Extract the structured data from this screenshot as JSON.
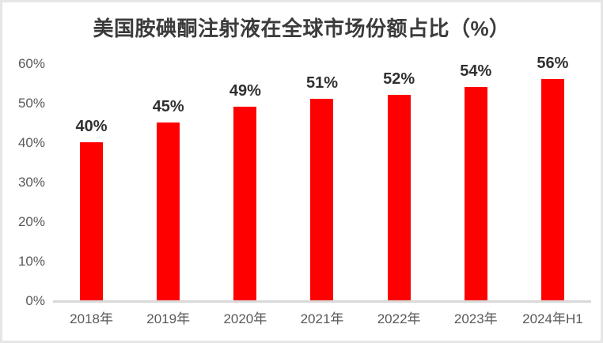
{
  "window": {
    "background_color": "#ffffff",
    "border_color": "#e6e6e6"
  },
  "chart_data": {
    "type": "bar",
    "title": "美国胺碘酮注射液在全球市场份额占比（%）",
    "categories": [
      "2018年",
      "2019年",
      "2020年",
      "2021年",
      "2022年",
      "2023年",
      "2024年H1"
    ],
    "values": [
      40,
      45,
      49,
      51,
      52,
      54,
      56
    ],
    "value_labels": [
      "40%",
      "45%",
      "49%",
      "51%",
      "52%",
      "54%",
      "56%"
    ],
    "xlabel": "",
    "ylabel": "",
    "ylim": [
      0,
      60
    ],
    "y_ticks": [
      {
        "value": 0,
        "label": "0%"
      },
      {
        "value": 10,
        "label": "10%"
      },
      {
        "value": 20,
        "label": "20%"
      },
      {
        "value": 30,
        "label": "30%"
      },
      {
        "value": 40,
        "label": "40%"
      },
      {
        "value": 50,
        "label": "50%"
      },
      {
        "value": 60,
        "label": "60%"
      }
    ],
    "grid": false,
    "legend": false,
    "bar_color": "#ff0000",
    "title_color": "#3b3b3b",
    "value_label_color": "#303030",
    "axis_tick_color": "#595959",
    "axis_line_color": "#d9d9d9"
  }
}
